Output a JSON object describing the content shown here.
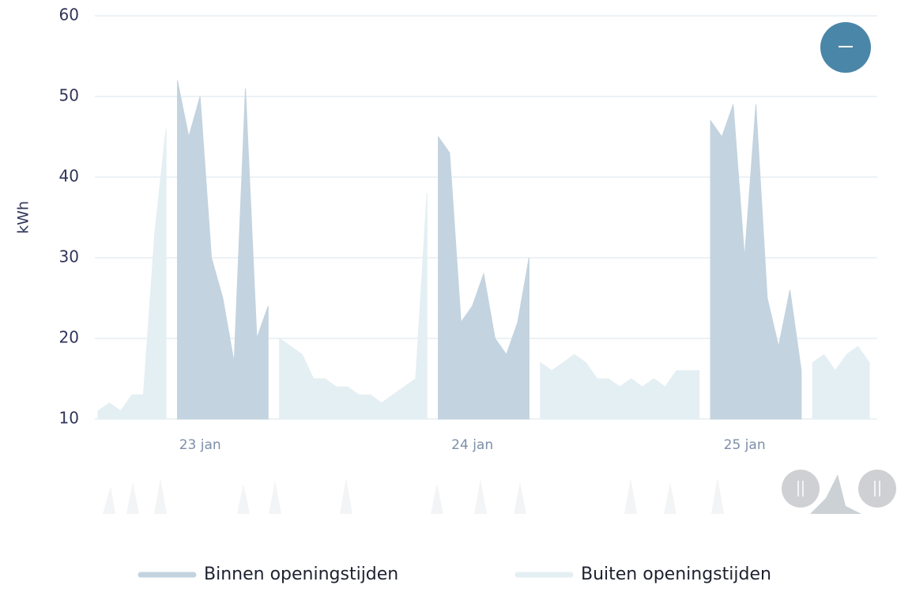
{
  "chart_data": {
    "type": "area",
    "y_label": "kWh",
    "ylim": [
      10,
      60
    ],
    "yticks": [
      10,
      20,
      30,
      40,
      50,
      60
    ],
    "grid": true,
    "legend": "bottom",
    "categories": [
      null,
      null,
      null,
      null,
      null,
      null,
      null,
      null,
      null,
      "23 jan",
      null,
      null,
      null,
      null,
      null,
      null,
      null,
      null,
      null,
      null,
      null,
      null,
      null,
      null,
      null,
      null,
      null,
      null,
      null,
      null,
      null,
      null,
      null,
      "24 jan",
      null,
      null,
      null,
      null,
      null,
      null,
      null,
      null,
      null,
      null,
      null,
      null,
      null,
      null,
      null,
      null,
      null,
      null,
      null,
      null,
      null,
      null,
      null,
      "25 jan",
      null,
      null,
      null,
      null,
      null,
      null,
      null,
      null,
      null,
      null,
      null
    ],
    "series": [
      {
        "name": "Binnen openingstijden",
        "color": "#c3d3df",
        "values": [
          null,
          null,
          null,
          null,
          null,
          null,
          null,
          52,
          45,
          50,
          30,
          25,
          17,
          51,
          20,
          24,
          null,
          null,
          null,
          null,
          null,
          null,
          null,
          null,
          null,
          null,
          null,
          null,
          null,
          null,
          45,
          43,
          22,
          24,
          28,
          20,
          18,
          22,
          30,
          null,
          null,
          null,
          null,
          null,
          null,
          null,
          null,
          null,
          null,
          null,
          null,
          null,
          null,
          null,
          47,
          45,
          49,
          30,
          49,
          25,
          19,
          26,
          16,
          null,
          null,
          null,
          null,
          null,
          null
        ]
      },
      {
        "name": "Buiten openingstijden",
        "color": "#e4eff3",
        "values": [
          11,
          12,
          11,
          13,
          13,
          33,
          46,
          null,
          null,
          null,
          null,
          null,
          null,
          null,
          null,
          null,
          20,
          19,
          18,
          15,
          15,
          14,
          14,
          13,
          13,
          12,
          13,
          14,
          15,
          38,
          null,
          null,
          null,
          null,
          null,
          null,
          null,
          null,
          null,
          17,
          16,
          17,
          18,
          17,
          15,
          15,
          14,
          15,
          14,
          15,
          14,
          16,
          16,
          16,
          null,
          null,
          null,
          null,
          null,
          null,
          null,
          null,
          null,
          17,
          18,
          16,
          18,
          19,
          17
        ]
      }
    ]
  }
}
